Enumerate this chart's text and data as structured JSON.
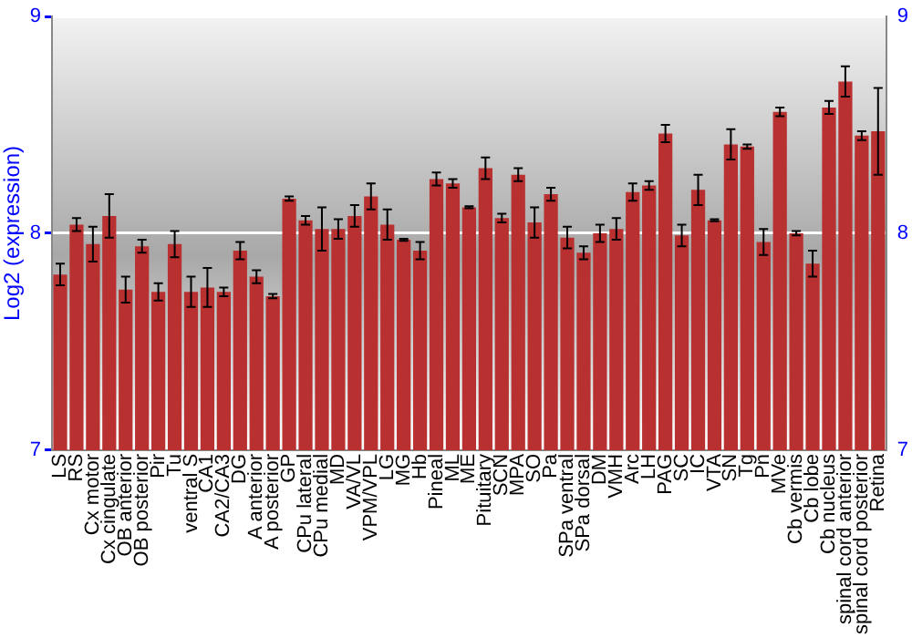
{
  "chart_data": {
    "type": "bar",
    "ylabel": "Log2 (expression)",
    "categories": [
      "LS",
      "RS",
      "Cx motor",
      "Cx cingulate",
      "OB anterior",
      "OB posterior",
      "Pir",
      "Tu",
      "ventral S",
      "CA1",
      "CA2/CA3",
      "DG",
      "A anterior",
      "A posterior",
      "GP",
      "CPu lateral",
      "CPu medial",
      "MD",
      "VA/VL",
      "VPM/VPL",
      "LG",
      "MG",
      "Hb",
      "Pineal",
      "ML",
      "ME",
      "Pituitary",
      "SCN",
      "MPA",
      "SO",
      "Pa",
      "SPa ventral",
      "SPa dorsal",
      "DM",
      "VMH",
      "Arc",
      "LH",
      "PAG",
      "SC",
      "IC",
      "VTA",
      "SN",
      "Tg",
      "Pn",
      "MVe",
      "Cb vermis",
      "Cb lobe",
      "Cb nucleus",
      "spinal cord anterior",
      "spinal cord posterior",
      "Retina"
    ],
    "values": [
      7.81,
      8.04,
      7.95,
      8.08,
      7.74,
      7.94,
      7.73,
      7.95,
      7.73,
      7.75,
      7.73,
      7.92,
      7.8,
      7.71,
      8.16,
      8.06,
      8.02,
      8.02,
      8.08,
      8.17,
      8.04,
      7.97,
      7.92,
      8.25,
      8.23,
      8.12,
      8.3,
      8.07,
      8.27,
      8.05,
      8.18,
      7.98,
      7.91,
      8,
      8.02,
      8.19,
      8.22,
      8.46,
      7.99,
      8.2,
      8.06,
      8.41,
      8.4,
      7.96,
      8.56,
      8,
      7.86,
      8.58,
      8.7,
      8.45,
      8.47
    ],
    "errors": [
      0.05,
      0.03,
      0.08,
      0.1,
      0.06,
      0.03,
      0.04,
      0.06,
      0.07,
      0.09,
      0.02,
      0.04,
      0.03,
      0.01,
      0.01,
      0.02,
      0.1,
      0.045,
      0.05,
      0.06,
      0.07,
      0.005,
      0.04,
      0.03,
      0.02,
      0.005,
      0.05,
      0.02,
      0.03,
      0.07,
      0.03,
      0.05,
      0.03,
      0.04,
      0.05,
      0.04,
      0.02,
      0.04,
      0.05,
      0.07,
      0.005,
      0.07,
      0.01,
      0.06,
      0.02,
      0.01,
      0.06,
      0.03,
      0.07,
      0.02,
      0.2
    ],
    "color": "#b83030",
    "ylim": [
      7,
      9
    ],
    "yticks": [
      7,
      8,
      9
    ],
    "y2lim": [
      7,
      9
    ],
    "y2ticks": [
      7,
      8,
      9
    ],
    "grid": "y"
  }
}
